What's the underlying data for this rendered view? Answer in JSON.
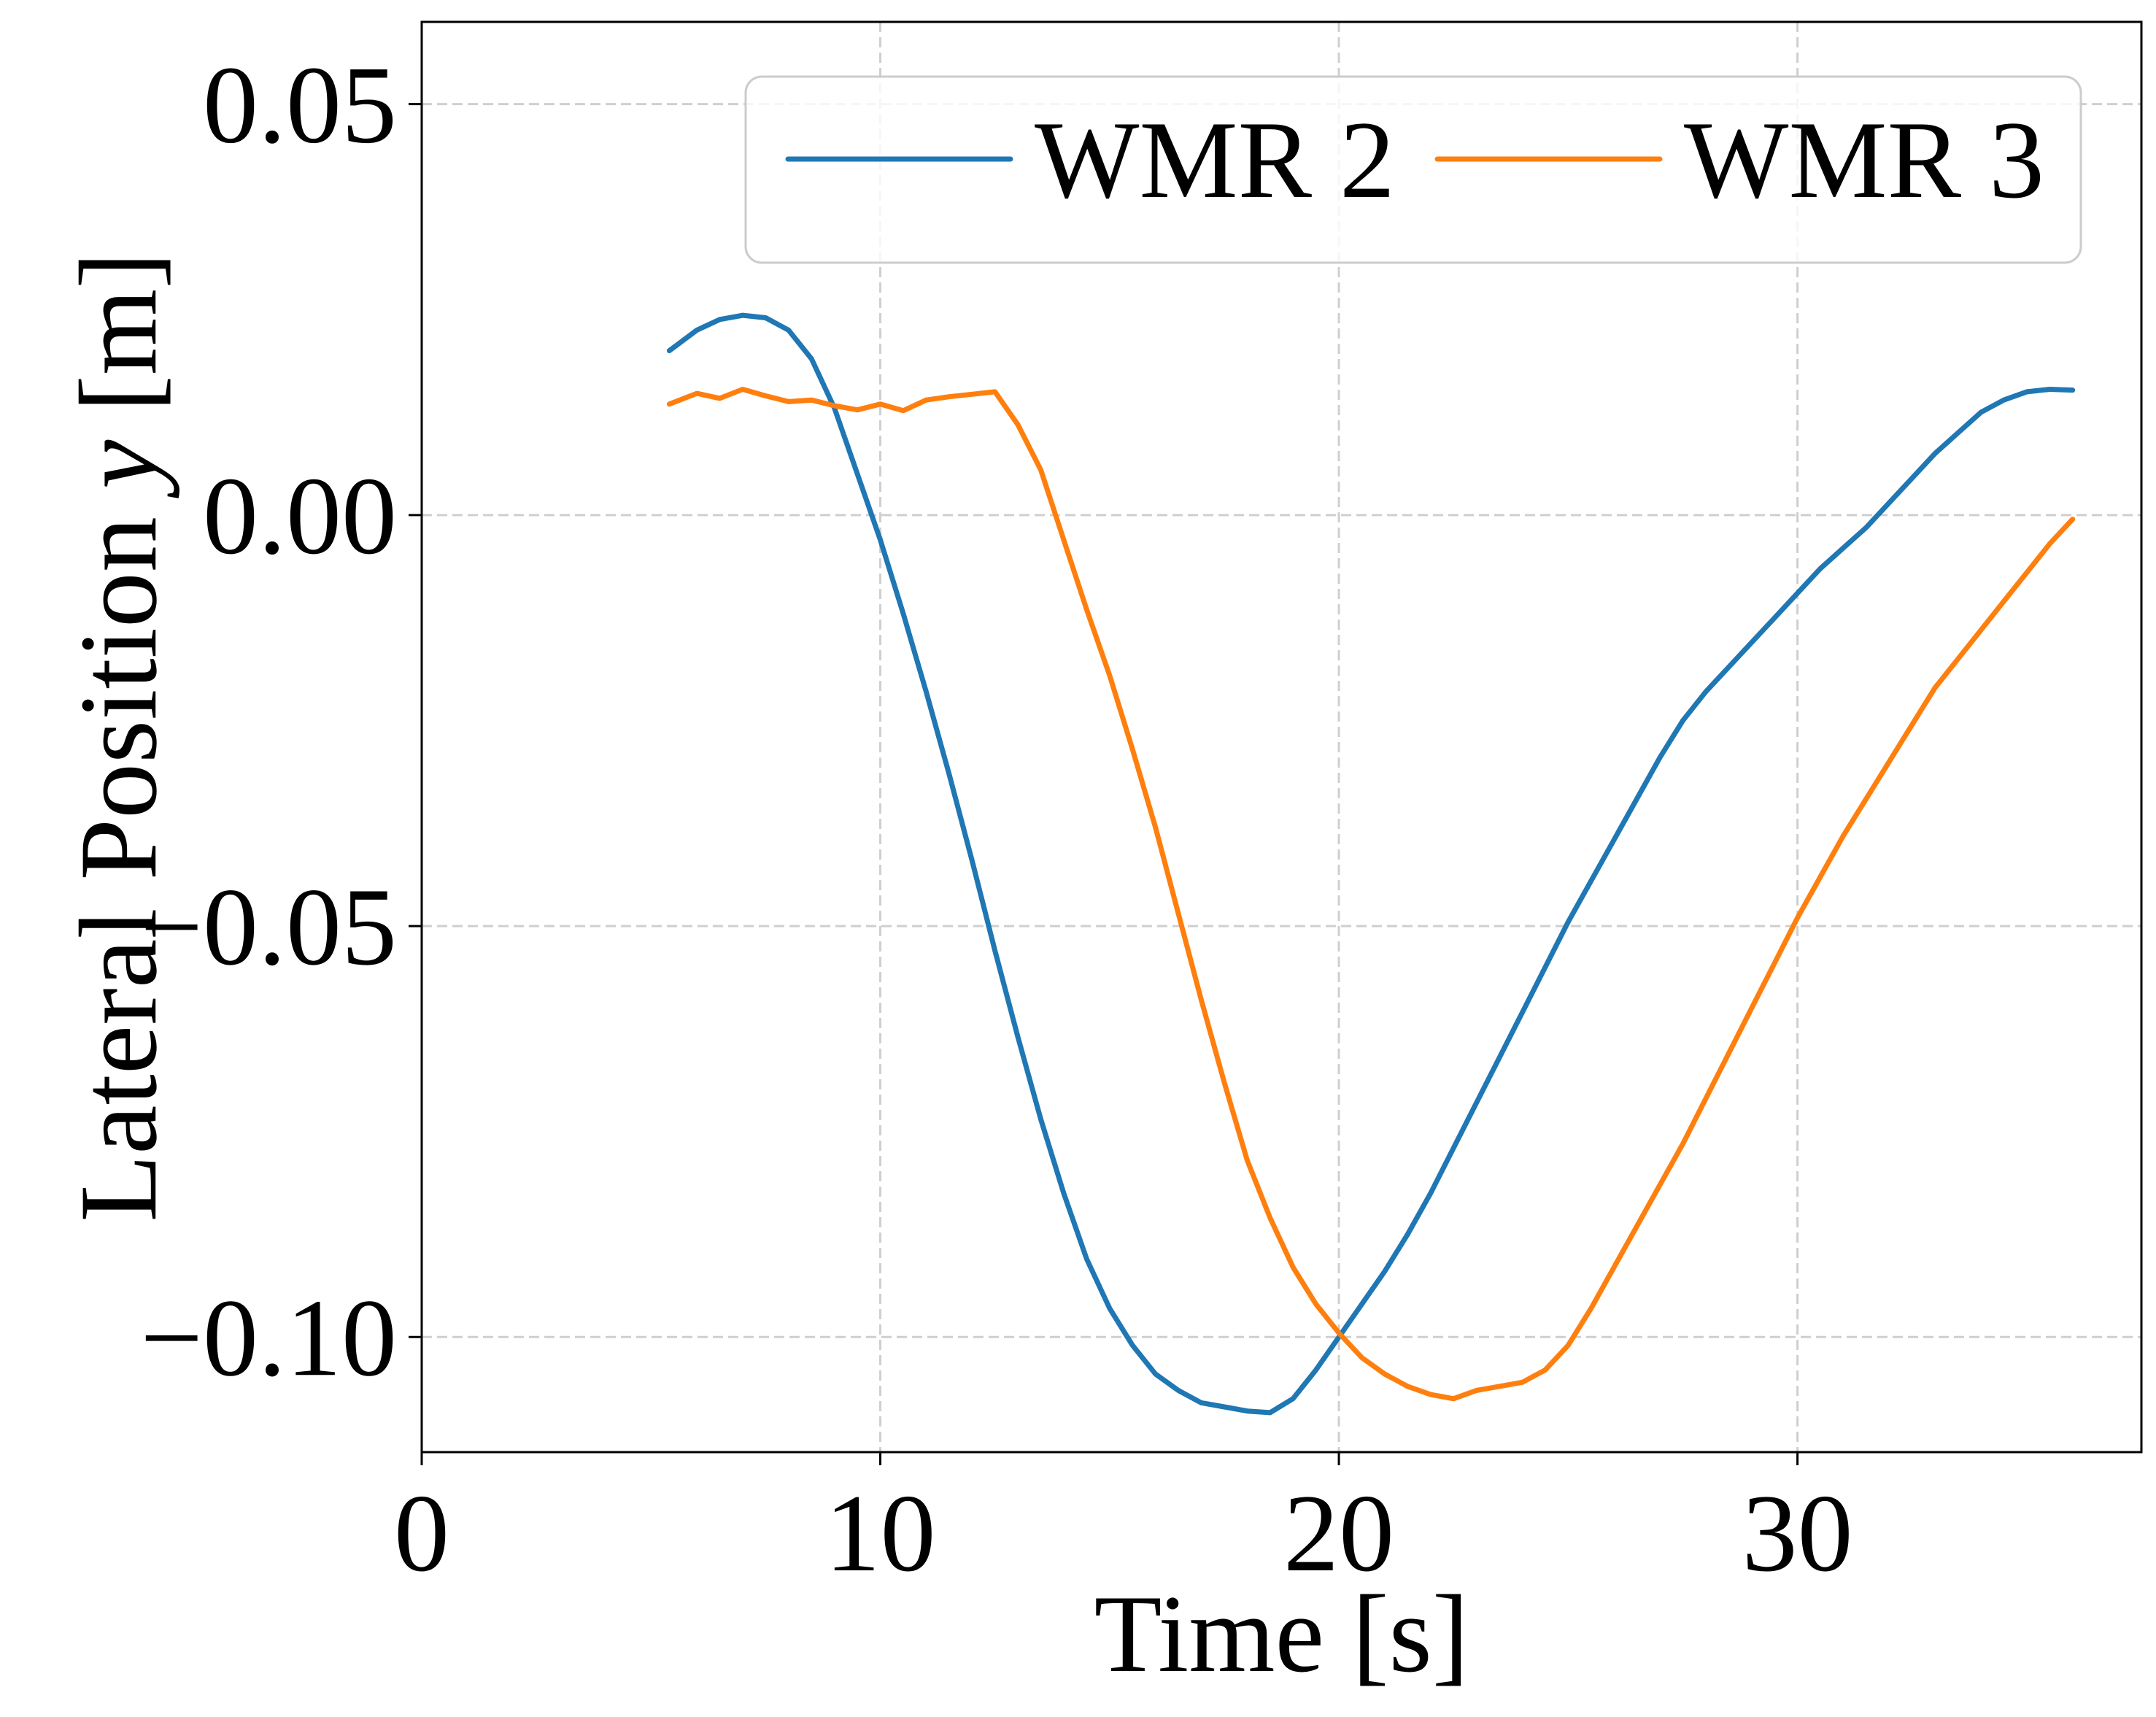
{
  "chart_data": {
    "type": "line",
    "xlabel": "Time [s]",
    "ylabel_prefix": "Lateral Position ",
    "ylabel_var": "y",
    "ylabel_suffix": " [m]",
    "xlim": [
      0,
      37.5
    ],
    "ylim": [
      -0.114,
      0.06
    ],
    "xticks": [
      0,
      10,
      20,
      30
    ],
    "xtick_labels": [
      "0",
      "10",
      "20",
      "30"
    ],
    "yticks": [
      0.05,
      0.0,
      -0.05,
      -0.1
    ],
    "ytick_labels": [
      "0.05",
      "0.00",
      "−0.05",
      "−0.10"
    ],
    "grid": true,
    "legend_placement": "top-right",
    "series": [
      {
        "name": "WMR 2",
        "color": "#1f77b4",
        "points": [
          [
            5.4,
            0.02
          ],
          [
            6.0,
            0.0225
          ],
          [
            6.5,
            0.0238
          ],
          [
            7.0,
            0.0243
          ],
          [
            7.5,
            0.024
          ],
          [
            8.0,
            0.0225
          ],
          [
            8.5,
            0.019
          ],
          [
            9.0,
            0.013
          ],
          [
            9.5,
            0.005
          ],
          [
            10.0,
            -0.003
          ],
          [
            10.5,
            -0.012
          ],
          [
            11.0,
            -0.0215
          ],
          [
            11.5,
            -0.0315
          ],
          [
            12.0,
            -0.042
          ],
          [
            12.5,
            -0.053
          ],
          [
            13.0,
            -0.0635
          ],
          [
            13.5,
            -0.0735
          ],
          [
            14.0,
            -0.0825
          ],
          [
            14.5,
            -0.0905
          ],
          [
            15.0,
            -0.0965
          ],
          [
            15.5,
            -0.101
          ],
          [
            16.0,
            -0.1045
          ],
          [
            16.5,
            -0.1065
          ],
          [
            17.0,
            -0.108
          ],
          [
            17.5,
            -0.1085
          ],
          [
            18.0,
            -0.109
          ],
          [
            18.5,
            -0.1092
          ],
          [
            19.0,
            -0.1075
          ],
          [
            19.5,
            -0.104
          ],
          [
            20.0,
            -0.1
          ],
          [
            20.5,
            -0.096
          ],
          [
            21.0,
            -0.092
          ],
          [
            21.5,
            -0.0875
          ],
          [
            22.0,
            -0.0825
          ],
          [
            22.5,
            -0.077
          ],
          [
            23.0,
            -0.0715
          ],
          [
            23.5,
            -0.066
          ],
          [
            24.0,
            -0.0605
          ],
          [
            24.5,
            -0.055
          ],
          [
            25.0,
            -0.0495
          ],
          [
            25.5,
            -0.0445
          ],
          [
            26.0,
            -0.0395
          ],
          [
            26.5,
            -0.0345
          ],
          [
            27.0,
            -0.0295
          ],
          [
            27.5,
            -0.025
          ],
          [
            28.0,
            -0.0215
          ],
          [
            28.5,
            -0.0185
          ],
          [
            29.0,
            -0.0155
          ],
          [
            29.5,
            -0.0125
          ],
          [
            30.0,
            -0.0095
          ],
          [
            30.5,
            -0.0065
          ],
          [
            31.0,
            -0.004
          ],
          [
            31.5,
            -0.0015
          ],
          [
            32.0,
            0.0015
          ],
          [
            32.5,
            0.0045
          ],
          [
            33.0,
            0.0075
          ],
          [
            33.5,
            0.01
          ],
          [
            34.0,
            0.0125
          ],
          [
            34.5,
            0.014
          ],
          [
            35.0,
            0.015
          ],
          [
            35.5,
            0.0153
          ],
          [
            36.0,
            0.0152
          ]
        ]
      },
      {
        "name": "WMR 3",
        "color": "#ff7f0e",
        "points": [
          [
            5.4,
            0.0135
          ],
          [
            6.0,
            0.0148
          ],
          [
            6.5,
            0.0142
          ],
          [
            7.0,
            0.0153
          ],
          [
            7.5,
            0.0145
          ],
          [
            8.0,
            0.0138
          ],
          [
            8.5,
            0.014
          ],
          [
            9.0,
            0.0133
          ],
          [
            9.5,
            0.0128
          ],
          [
            10.0,
            0.0135
          ],
          [
            10.5,
            0.0127
          ],
          [
            11.0,
            0.014
          ],
          [
            11.5,
            0.0144
          ],
          [
            12.0,
            0.0147
          ],
          [
            12.5,
            0.015
          ],
          [
            13.0,
            0.011
          ],
          [
            13.5,
            0.0055
          ],
          [
            14.0,
            -0.003
          ],
          [
            14.5,
            -0.0115
          ],
          [
            15.0,
            -0.0195
          ],
          [
            15.5,
            -0.0285
          ],
          [
            16.0,
            -0.038
          ],
          [
            16.5,
            -0.0485
          ],
          [
            17.0,
            -0.059
          ],
          [
            17.5,
            -0.069
          ],
          [
            18.0,
            -0.0785
          ],
          [
            18.5,
            -0.0855
          ],
          [
            19.0,
            -0.0915
          ],
          [
            19.5,
            -0.096
          ],
          [
            20.0,
            -0.0995
          ],
          [
            20.5,
            -0.1025
          ],
          [
            21.0,
            -0.1045
          ],
          [
            21.5,
            -0.106
          ],
          [
            22.0,
            -0.107
          ],
          [
            22.5,
            -0.1075
          ],
          [
            23.0,
            -0.1065
          ],
          [
            23.5,
            -0.106
          ],
          [
            24.0,
            -0.1055
          ],
          [
            24.5,
            -0.104
          ],
          [
            25.0,
            -0.101
          ],
          [
            25.5,
            -0.0965
          ],
          [
            26.0,
            -0.0915
          ],
          [
            26.5,
            -0.0865
          ],
          [
            27.0,
            -0.0815
          ],
          [
            27.5,
            -0.0765
          ],
          [
            28.0,
            -0.071
          ],
          [
            28.5,
            -0.0655
          ],
          [
            29.0,
            -0.06
          ],
          [
            29.5,
            -0.0545
          ],
          [
            30.0,
            -0.049
          ],
          [
            30.5,
            -0.044
          ],
          [
            31.0,
            -0.039
          ],
          [
            31.5,
            -0.0345
          ],
          [
            32.0,
            -0.03
          ],
          [
            32.5,
            -0.0255
          ],
          [
            33.0,
            -0.021
          ],
          [
            33.5,
            -0.0175
          ],
          [
            34.0,
            -0.014
          ],
          [
            34.5,
            -0.0105
          ],
          [
            35.0,
            -0.007
          ],
          [
            35.5,
            -0.0035
          ],
          [
            36.0,
            -0.0005
          ]
        ]
      }
    ]
  }
}
